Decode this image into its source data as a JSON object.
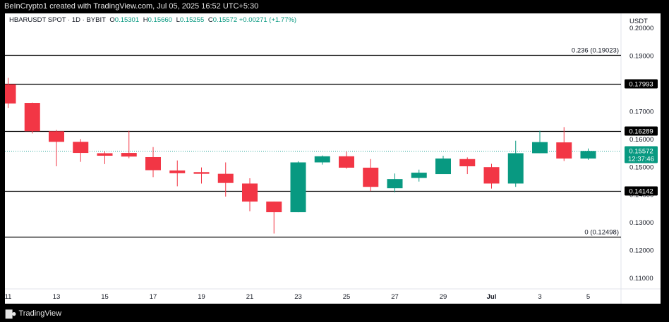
{
  "header": {
    "created_by": "BeInCrypto1 created with TradingView.com, Jul 05, 2025 16:52 UTC+5:30"
  },
  "legend": {
    "symbol": "HBARUSDT SPOT · 1D · BYBIT",
    "open_label": "O",
    "open": "0.15301",
    "high_label": "H",
    "high": "0.15660",
    "low_label": "L",
    "low": "0.15255",
    "close_label": "C",
    "close": "0.15572",
    "change": "+0.00271 (+1.77%)"
  },
  "footer": {
    "logo_text": "TradingView",
    "logo_icon": "tradingview-logo-icon"
  },
  "colors": {
    "up": "#089981",
    "down": "#f23645",
    "line": "#000000",
    "dotted": "#26a69a"
  },
  "chart_data": {
    "type": "candlestick",
    "currency": "USDT",
    "ylim": [
      0.1061,
      0.2052
    ],
    "y_ticks": [
      "0.20000",
      "0.19000",
      "0.18000",
      "0.17000",
      "0.16000",
      "0.15000",
      "0.14000",
      "0.13000",
      "0.12000",
      "0.11000"
    ],
    "x_ticks": [
      {
        "label": "11",
        "index": 0
      },
      {
        "label": "13",
        "index": 2
      },
      {
        "label": "15",
        "index": 4
      },
      {
        "label": "17",
        "index": 6
      },
      {
        "label": "19",
        "index": 8
      },
      {
        "label": "21",
        "index": 10
      },
      {
        "label": "23",
        "index": 12
      },
      {
        "label": "25",
        "index": 14
      },
      {
        "label": "27",
        "index": 16
      },
      {
        "label": "29",
        "index": 18
      },
      {
        "label": "Jul",
        "index": 20
      },
      {
        "label": "3",
        "index": 22
      },
      {
        "label": "5",
        "index": 24
      }
    ],
    "candles": [
      {
        "o": 0.1797,
        "h": 0.182,
        "l": 0.1712,
        "c": 0.1728
      },
      {
        "o": 0.173,
        "h": 0.1731,
        "l": 0.162,
        "c": 0.1628
      },
      {
        "o": 0.1628,
        "h": 0.1633,
        "l": 0.1502,
        "c": 0.159
      },
      {
        "o": 0.159,
        "h": 0.16,
        "l": 0.1518,
        "c": 0.155
      },
      {
        "o": 0.1549,
        "h": 0.1556,
        "l": 0.151,
        "c": 0.154
      },
      {
        "o": 0.155,
        "h": 0.163,
        "l": 0.1531,
        "c": 0.1537
      },
      {
        "o": 0.1535,
        "h": 0.1571,
        "l": 0.1463,
        "c": 0.1488
      },
      {
        "o": 0.1487,
        "h": 0.1523,
        "l": 0.143,
        "c": 0.1477
      },
      {
        "o": 0.1481,
        "h": 0.1498,
        "l": 0.144,
        "c": 0.1475
      },
      {
        "o": 0.1475,
        "h": 0.1516,
        "l": 0.1393,
        "c": 0.1442
      },
      {
        "o": 0.144,
        "h": 0.1459,
        "l": 0.134,
        "c": 0.1375
      },
      {
        "o": 0.1375,
        "h": 0.1375,
        "l": 0.126,
        "c": 0.1337
      },
      {
        "o": 0.1337,
        "h": 0.152,
        "l": 0.1337,
        "c": 0.1516
      },
      {
        "o": 0.1516,
        "h": 0.1541,
        "l": 0.1508,
        "c": 0.1538
      },
      {
        "o": 0.1538,
        "h": 0.1555,
        "l": 0.1493,
        "c": 0.1497
      },
      {
        "o": 0.1497,
        "h": 0.1528,
        "l": 0.1413,
        "c": 0.1428
      },
      {
        "o": 0.1423,
        "h": 0.1476,
        "l": 0.1408,
        "c": 0.1456
      },
      {
        "o": 0.146,
        "h": 0.149,
        "l": 0.1447,
        "c": 0.1479
      },
      {
        "o": 0.1474,
        "h": 0.154,
        "l": 0.1474,
        "c": 0.153
      },
      {
        "o": 0.1528,
        "h": 0.1534,
        "l": 0.1474,
        "c": 0.1502
      },
      {
        "o": 0.1499,
        "h": 0.1511,
        "l": 0.1422,
        "c": 0.144
      },
      {
        "o": 0.144,
        "h": 0.1594,
        "l": 0.1428,
        "c": 0.1549
      },
      {
        "o": 0.1549,
        "h": 0.163,
        "l": 0.1549,
        "c": 0.1589
      },
      {
        "o": 0.1588,
        "h": 0.1643,
        "l": 0.1521,
        "c": 0.153
      },
      {
        "o": 0.153,
        "h": 0.1566,
        "l": 0.1525,
        "c": 0.1557
      }
    ],
    "levels": [
      {
        "value": 0.19023,
        "label": "0.236 (0.19023)",
        "style": "fib"
      },
      {
        "value": 0.17993,
        "label": "0.17993",
        "style": "tag"
      },
      {
        "value": 0.16289,
        "label": "0.16289",
        "style": "tag"
      },
      {
        "value": 0.14142,
        "label": "0.14142",
        "style": "tag"
      },
      {
        "value": 0.12498,
        "label": "0 (0.12498)",
        "style": "fib"
      }
    ],
    "last_price": {
      "value": 0.15572,
      "label": "0.15572",
      "countdown": "12:37:46"
    }
  }
}
